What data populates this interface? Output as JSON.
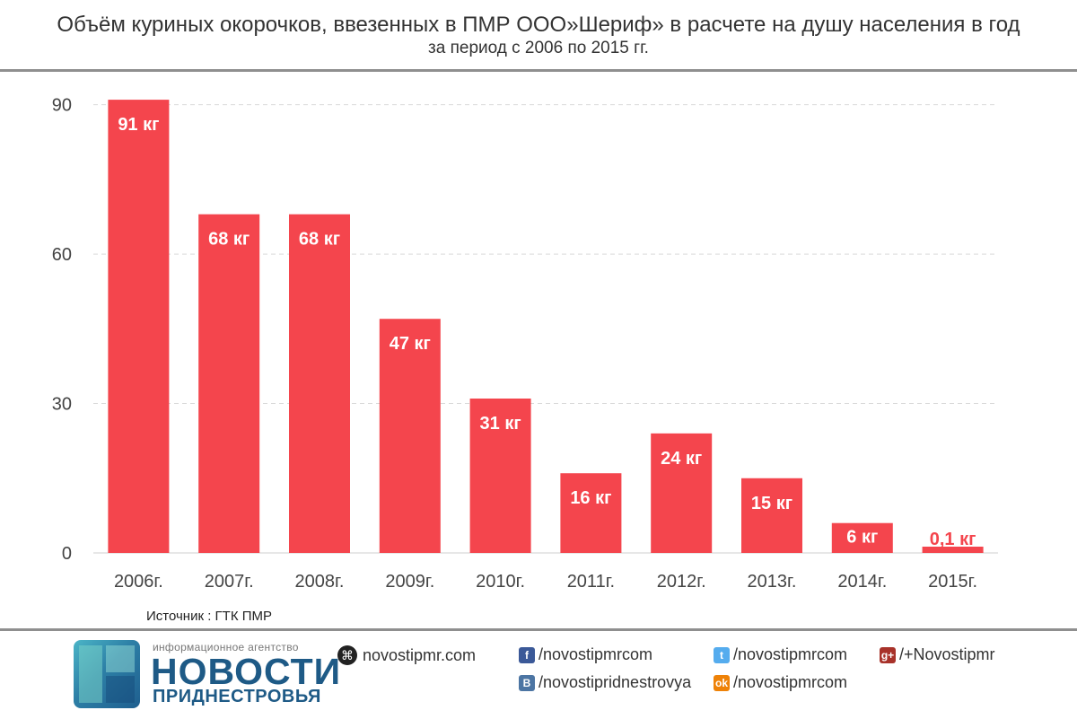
{
  "title": {
    "line1": "Объём куриных окорочков, ввезенных в ПМР ООО»Шериф»  в расчете на душу населения в год",
    "line2": "за период с 2006 по 2015 гг."
  },
  "chart_data": {
    "type": "bar",
    "categories": [
      "2006г.",
      "2007г.",
      "2008г.",
      "2009г.",
      "2010г.",
      "2011г.",
      "2012г.",
      "2013г.",
      "2014г.",
      "2015г."
    ],
    "values": [
      91,
      68,
      68,
      47,
      31,
      16,
      24,
      15,
      6,
      0.1
    ],
    "value_labels": [
      "91 кг",
      "68 кг",
      "68 кг",
      "47 кг",
      "31 кг",
      "16 кг",
      "24 кг",
      "15 кг",
      "6 кг",
      "0,1 кг"
    ],
    "yticks": [
      0,
      30,
      60,
      90
    ],
    "ylim": [
      0,
      93
    ],
    "grid": true,
    "bar_color": "#f4454d"
  },
  "source": "Источник : ГТК ПМР",
  "footer": {
    "brand_small": "информационное агентство",
    "brand_big": "НОВОСТИ",
    "brand_sub": "ПРИДНЕСТРОВЬЯ",
    "site": "novostipmr.com",
    "facebook": "/novostipmrcom",
    "vk": "/novostipridnestrovya",
    "twitter": "/novostipmrcom",
    "odnoklassniki": "/novostipmrcom",
    "googleplus": "/+Novostipmr",
    "icons": {
      "site": "globe-icon",
      "facebook": "facebook-icon",
      "vk": "vk-icon",
      "twitter": "twitter-icon",
      "odnoklassniki": "odnoklassniki-icon",
      "googleplus": "google-plus-icon"
    },
    "colors": {
      "facebook": "#3b5998",
      "vk": "#4c75a3",
      "twitter": "#55acee",
      "odnoklassniki": "#ee8208",
      "googleplus": "#a8322a",
      "brand": "#1e5a86"
    }
  }
}
